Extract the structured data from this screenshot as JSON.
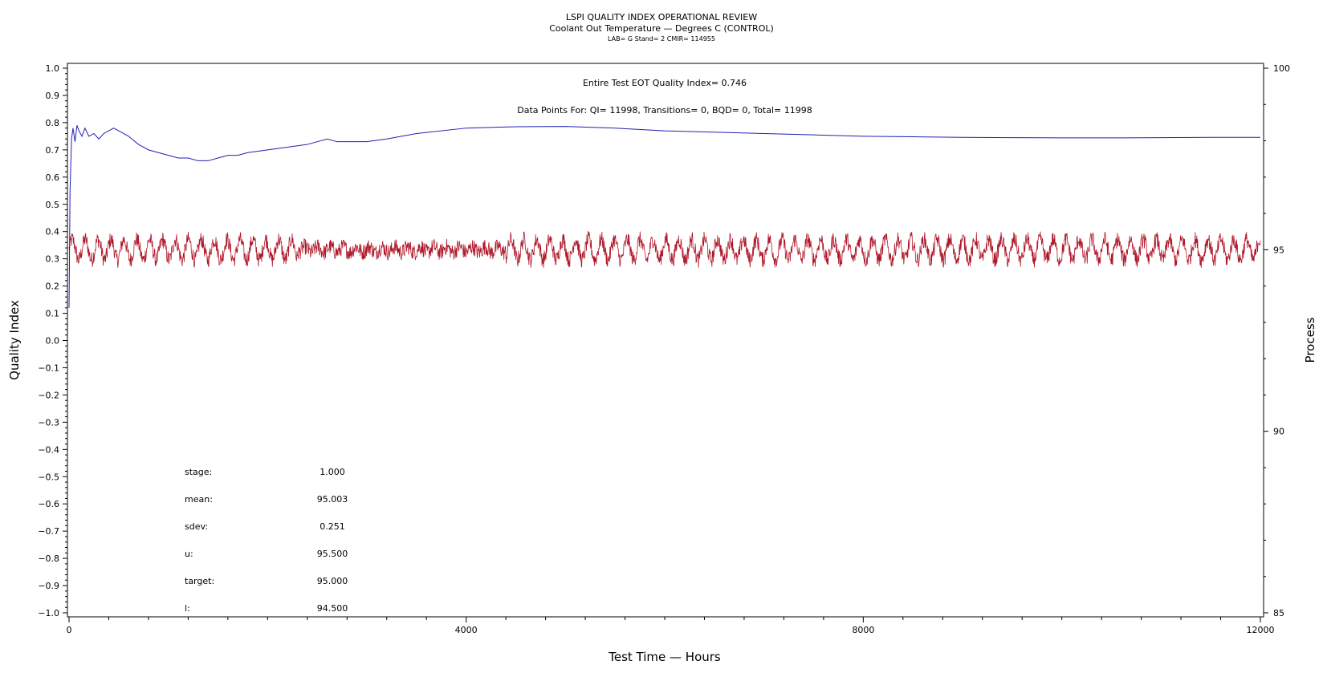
{
  "chart_data": {
    "type": "line",
    "title": "LSPI QUALITY INDEX OPERATIONAL REVIEW",
    "subtitle": "Coolant Out Temperature — Degrees C (CONTROL)",
    "subsubtitle": "LAB= G Stand= 2 CMIR= 114955",
    "xlabel": "Test Time — Hours",
    "ylabel_left": "Quality Index",
    "ylabel_right": "Process",
    "xlim": [
      0,
      12000
    ],
    "ylim_left": [
      -1.0,
      1.0
    ],
    "ylim_right": [
      85,
      100
    ],
    "x_ticks": [
      "0",
      "4000",
      "8000",
      "12000"
    ],
    "y_left_ticks": [
      "1.0",
      "0.9",
      "0.8",
      "0.7",
      "0.6",
      "0.5",
      "0.4",
      "0.3",
      "0.2",
      "0.1",
      "0.0",
      "−0.1",
      "−0.2",
      "−0.3",
      "−0.4",
      "−0.5",
      "−0.6",
      "−0.7",
      "−0.8",
      "−0.9",
      "−1.0"
    ],
    "y_right_ticks": [
      "100",
      "95",
      "90",
      "85"
    ],
    "annotations": {
      "eot_quality_index": "Entire Test EOT Quality Index=   0.746",
      "data_points": "Data Points For: QI= 11998, Transitions=     0, BQD=     0, Total= 11998"
    },
    "stats": [
      {
        "label": "stage:",
        "value": "1.000"
      },
      {
        "label": "mean:",
        "value": "95.003"
      },
      {
        "label": "sdev:",
        "value": "0.251"
      },
      {
        "label": "u:",
        "value": "95.500"
      },
      {
        "label": "target:",
        "value": "95.000"
      },
      {
        "label": "l:",
        "value": "94.500"
      }
    ],
    "series": [
      {
        "axis": "left",
        "color": "#1f1fb4",
        "x": [
          0,
          10,
          25,
          40,
          60,
          80,
          100,
          130,
          160,
          200,
          250,
          300,
          350,
          400,
          450,
          500,
          600,
          700,
          800,
          900,
          1000,
          1100,
          1200,
          1300,
          1400,
          1500,
          1600,
          1700,
          1800,
          2000,
          2200,
          2400,
          2500,
          2600,
          2700,
          2800,
          3000,
          3200,
          3500,
          4000,
          4500,
          5000,
          5500,
          6000,
          6500,
          7000,
          7500,
          8000,
          8500,
          9000,
          9500,
          10000,
          10500,
          11000,
          11500,
          12000
        ],
        "y": [
          0.12,
          0.55,
          0.74,
          0.78,
          0.73,
          0.79,
          0.77,
          0.75,
          0.78,
          0.75,
          0.76,
          0.74,
          0.76,
          0.77,
          0.78,
          0.77,
          0.75,
          0.72,
          0.7,
          0.69,
          0.68,
          0.67,
          0.67,
          0.66,
          0.66,
          0.67,
          0.68,
          0.68,
          0.69,
          0.7,
          0.71,
          0.72,
          0.73,
          0.74,
          0.73,
          0.73,
          0.73,
          0.74,
          0.76,
          0.78,
          0.785,
          0.786,
          0.78,
          0.77,
          0.765,
          0.76,
          0.755,
          0.75,
          0.748,
          0.746,
          0.745,
          0.744,
          0.744,
          0.745,
          0.746,
          0.746
        ]
      },
      {
        "axis": "right",
        "color": "#b0182a",
        "mean": 95.003,
        "sdev": 0.251,
        "n_points": 11998,
        "x_range": [
          0,
          12000
        ]
      }
    ]
  }
}
